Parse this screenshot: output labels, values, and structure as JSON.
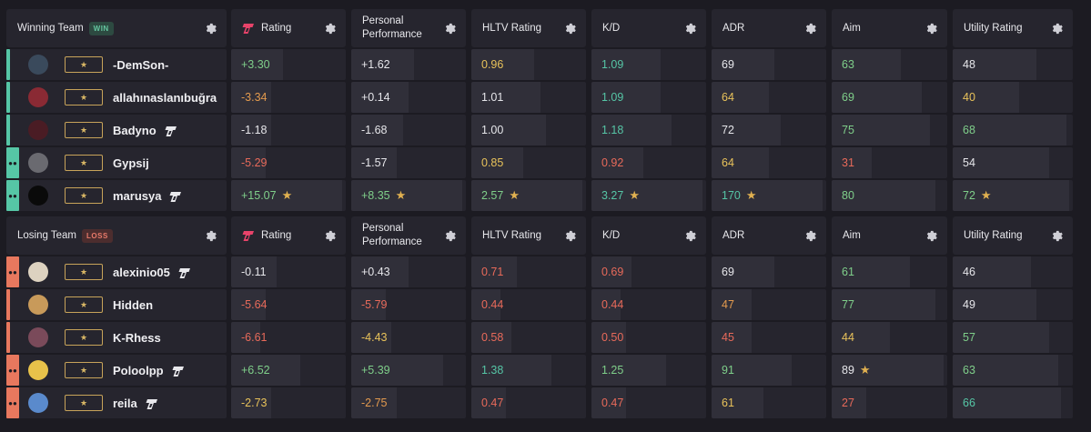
{
  "colors": {
    "win_accent": "#56c6a6",
    "loss_accent": "#e8785e",
    "star": "#e0b050"
  },
  "stat_headers": [
    "Rating",
    "Personal Performance",
    "HLTV Rating",
    "K/D",
    "ADR",
    "Aim",
    "Utility Rating"
  ],
  "teams": [
    {
      "name": "Winning Team",
      "badge": "WIN",
      "players": [
        {
          "name": "-DemSon-",
          "party": false,
          "leetify": false,
          "stats": [
            {
              "v": "+3.30",
              "c": "green",
              "f": 0.45
            },
            {
              "v": "+1.62",
              "c": "white",
              "f": 0.55
            },
            {
              "v": "0.96",
              "c": "yellow",
              "f": 0.55
            },
            {
              "v": "1.09",
              "c": "teal",
              "f": 0.6
            },
            {
              "v": "69",
              "c": "white",
              "f": 0.55
            },
            {
              "v": "63",
              "c": "green",
              "f": 0.6
            },
            {
              "v": "48",
              "c": "white",
              "f": 0.7
            }
          ]
        },
        {
          "name": "allahınaslanıbuğra",
          "party": false,
          "leetify": false,
          "stats": [
            {
              "v": "-3.34",
              "c": "orange",
              "f": 0.35
            },
            {
              "v": "+0.14",
              "c": "white",
              "f": 0.5
            },
            {
              "v": "1.01",
              "c": "white",
              "f": 0.6
            },
            {
              "v": "1.09",
              "c": "teal",
              "f": 0.6
            },
            {
              "v": "64",
              "c": "yellow",
              "f": 0.5
            },
            {
              "v": "69",
              "c": "green",
              "f": 0.78
            },
            {
              "v": "40",
              "c": "yellow",
              "f": 0.55
            }
          ]
        },
        {
          "name": "Badyno",
          "party": false,
          "leetify": true,
          "stats": [
            {
              "v": "-1.18",
              "c": "white",
              "f": 0.35
            },
            {
              "v": "-1.68",
              "c": "white",
              "f": 0.45
            },
            {
              "v": "1.00",
              "c": "white",
              "f": 0.65
            },
            {
              "v": "1.18",
              "c": "teal",
              "f": 0.7
            },
            {
              "v": "72",
              "c": "white",
              "f": 0.6
            },
            {
              "v": "75",
              "c": "green",
              "f": 0.85
            },
            {
              "v": "68",
              "c": "green",
              "f": 0.95
            }
          ]
        },
        {
          "name": "Gypsij",
          "party": true,
          "leetify": false,
          "stats": [
            {
              "v": "-5.29",
              "c": "red",
              "f": 0.3
            },
            {
              "v": "-1.57",
              "c": "white",
              "f": 0.4
            },
            {
              "v": "0.85",
              "c": "yellow",
              "f": 0.45
            },
            {
              "v": "0.92",
              "c": "red",
              "f": 0.45
            },
            {
              "v": "64",
              "c": "yellow",
              "f": 0.5
            },
            {
              "v": "31",
              "c": "red",
              "f": 0.35
            },
            {
              "v": "54",
              "c": "white",
              "f": 0.8
            }
          ]
        },
        {
          "name": "marusya",
          "party": true,
          "leetify": true,
          "stats": [
            {
              "v": "+15.07",
              "c": "green",
              "f": 0.97,
              "star": true
            },
            {
              "v": "+8.35",
              "c": "green",
              "f": 0.97,
              "star": true
            },
            {
              "v": "2.57",
              "c": "green",
              "f": 0.97,
              "star": true
            },
            {
              "v": "3.27",
              "c": "teal",
              "f": 0.97,
              "star": true
            },
            {
              "v": "170",
              "c": "teal",
              "f": 0.97,
              "star": true
            },
            {
              "v": "80",
              "c": "green",
              "f": 0.9
            },
            {
              "v": "72",
              "c": "green",
              "f": 0.97,
              "star": true
            }
          ]
        }
      ]
    },
    {
      "name": "Losing Team",
      "badge": "LOSS",
      "players": [
        {
          "name": "alexinio05",
          "party": true,
          "leetify": true,
          "stats": [
            {
              "v": "-0.11",
              "c": "white",
              "f": 0.4
            },
            {
              "v": "+0.43",
              "c": "white",
              "f": 0.5
            },
            {
              "v": "0.71",
              "c": "red",
              "f": 0.4
            },
            {
              "v": "0.69",
              "c": "red",
              "f": 0.35
            },
            {
              "v": "69",
              "c": "white",
              "f": 0.55
            },
            {
              "v": "61",
              "c": "green",
              "f": 0.68
            },
            {
              "v": "46",
              "c": "white",
              "f": 0.65
            }
          ]
        },
        {
          "name": "Hidden",
          "party": false,
          "leetify": false,
          "stats": [
            {
              "v": "-5.64",
              "c": "red",
              "f": 0.3
            },
            {
              "v": "-5.79",
              "c": "red",
              "f": 0.3
            },
            {
              "v": "0.44",
              "c": "red",
              "f": 0.25
            },
            {
              "v": "0.44",
              "c": "red",
              "f": 0.25
            },
            {
              "v": "47",
              "c": "orange",
              "f": 0.35
            },
            {
              "v": "77",
              "c": "green",
              "f": 0.9
            },
            {
              "v": "49",
              "c": "white",
              "f": 0.7
            }
          ]
        },
        {
          "name": "K-Rhess",
          "party": false,
          "leetify": false,
          "stats": [
            {
              "v": "-6.61",
              "c": "red",
              "f": 0.25
            },
            {
              "v": "-4.43",
              "c": "yellow",
              "f": 0.35
            },
            {
              "v": "0.58",
              "c": "red",
              "f": 0.35
            },
            {
              "v": "0.50",
              "c": "red",
              "f": 0.3
            },
            {
              "v": "45",
              "c": "red",
              "f": 0.35
            },
            {
              "v": "44",
              "c": "yellow",
              "f": 0.5
            },
            {
              "v": "57",
              "c": "green",
              "f": 0.8
            }
          ]
        },
        {
          "name": "Poloolpp",
          "party": true,
          "leetify": true,
          "stats": [
            {
              "v": "+6.52",
              "c": "green",
              "f": 0.6
            },
            {
              "v": "+5.39",
              "c": "green",
              "f": 0.8
            },
            {
              "v": "1.38",
              "c": "teal",
              "f": 0.7
            },
            {
              "v": "1.25",
              "c": "green",
              "f": 0.65
            },
            {
              "v": "91",
              "c": "green",
              "f": 0.7
            },
            {
              "v": "89",
              "c": "white",
              "f": 0.97,
              "star": true
            },
            {
              "v": "63",
              "c": "green",
              "f": 0.88
            }
          ]
        },
        {
          "name": "reila",
          "party": true,
          "leetify": true,
          "stats": [
            {
              "v": "-2.73",
              "c": "yellow",
              "f": 0.35
            },
            {
              "v": "-2.75",
              "c": "orange",
              "f": 0.4
            },
            {
              "v": "0.47",
              "c": "red",
              "f": 0.3
            },
            {
              "v": "0.47",
              "c": "red",
              "f": 0.3
            },
            {
              "v": "61",
              "c": "yellow",
              "f": 0.45
            },
            {
              "v": "27",
              "c": "red",
              "f": 0.3
            },
            {
              "v": "66",
              "c": "teal",
              "f": 0.9
            }
          ]
        }
      ]
    }
  ]
}
